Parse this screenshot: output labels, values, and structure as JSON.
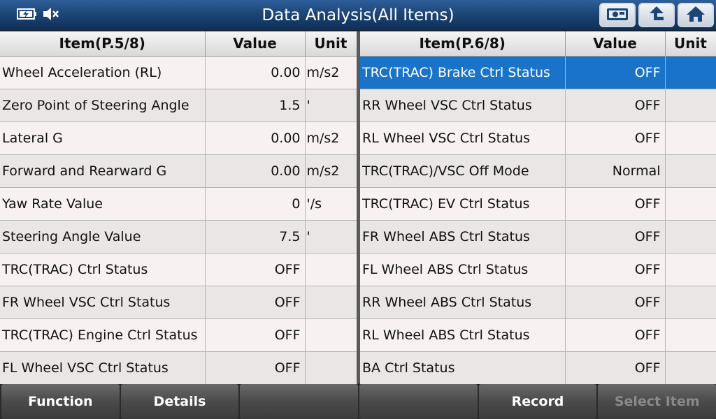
{
  "header": {
    "title": "Data Analysis(All Items)"
  },
  "left_table": {
    "headers": {
      "item": "Item(P.5/8)",
      "value": "Value",
      "unit": "Unit"
    },
    "rows": [
      {
        "item": "Wheel Acceleration (RL)",
        "value": "0.00",
        "unit": "m/s2"
      },
      {
        "item": "Zero Point of Steering Angle",
        "value": "1.5",
        "unit": "'"
      },
      {
        "item": "Lateral G",
        "value": "0.00",
        "unit": "m/s2"
      },
      {
        "item": "Forward and Rearward G",
        "value": "0.00",
        "unit": "m/s2"
      },
      {
        "item": "Yaw Rate Value",
        "value": "0",
        "unit": "'/s"
      },
      {
        "item": "Steering Angle Value",
        "value": "7.5",
        "unit": "'"
      },
      {
        "item": "TRC(TRAC) Ctrl Status",
        "value": "OFF",
        "unit": ""
      },
      {
        "item": "FR Wheel VSC Ctrl Status",
        "value": "OFF",
        "unit": ""
      },
      {
        "item": "TRC(TRAC) Engine Ctrl Status",
        "value": "OFF",
        "unit": ""
      },
      {
        "item": "FL Wheel VSC Ctrl Status",
        "value": "OFF",
        "unit": ""
      }
    ]
  },
  "right_table": {
    "headers": {
      "item": "Item(P.6/8)",
      "value": "Value",
      "unit": "Unit"
    },
    "rows": [
      {
        "item": "TRC(TRAC) Brake Ctrl Status",
        "value": "OFF",
        "unit": ""
      },
      {
        "item": "RR Wheel VSC Ctrl Status",
        "value": "OFF",
        "unit": ""
      },
      {
        "item": "RL Wheel VSC Ctrl Status",
        "value": "OFF",
        "unit": ""
      },
      {
        "item": "TRC(TRAC)/VSC Off Mode",
        "value": "Normal",
        "unit": ""
      },
      {
        "item": "TRC(TRAC) EV Ctrl Status",
        "value": "OFF",
        "unit": ""
      },
      {
        "item": "FR Wheel ABS Ctrl Status",
        "value": "OFF",
        "unit": ""
      },
      {
        "item": "FL Wheel ABS Ctrl Status",
        "value": "OFF",
        "unit": ""
      },
      {
        "item": "RR Wheel ABS Ctrl Status",
        "value": "OFF",
        "unit": ""
      },
      {
        "item": "RL Wheel ABS Ctrl Status",
        "value": "OFF",
        "unit": ""
      },
      {
        "item": "BA Ctrl Status",
        "value": "OFF",
        "unit": ""
      }
    ]
  },
  "footer": {
    "function_label": "Function",
    "details_label": "Details",
    "empty1_label": "",
    "empty2_label": "",
    "record_label": "Record",
    "select_item_label": "Select Item"
  },
  "colors": {
    "title_bar": "#1d4677",
    "selected_row": "#1873c9",
    "row_odd": "#f7f1f1",
    "row_even": "#eae6e6"
  },
  "icons": [
    "battery-icon",
    "mute-icon",
    "screenshot-icon",
    "back-up-icon",
    "home-icon"
  ]
}
